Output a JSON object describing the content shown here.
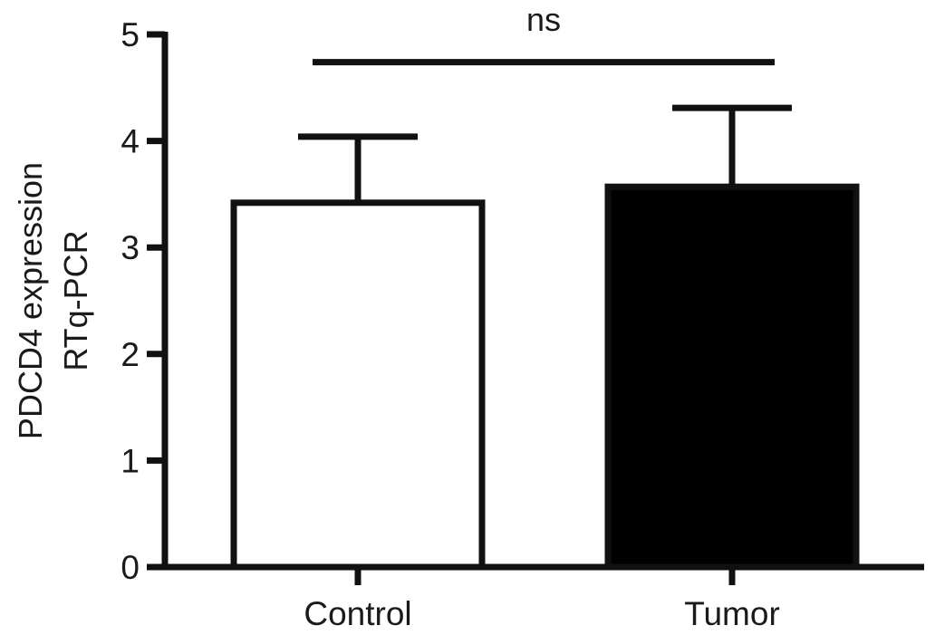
{
  "chart_data": {
    "type": "bar",
    "categories": [
      "Control",
      "Tumor"
    ],
    "values": [
      3.42,
      3.57
    ],
    "errors": [
      0.62,
      0.74
    ],
    "bar_colors": [
      "#ffffff",
      "#000000"
    ],
    "ylabel_lines": [
      "PDCD4 expression",
      "RTq-PCR"
    ],
    "xlabel": "",
    "ylim": [
      0,
      5
    ],
    "yticks": [
      0,
      1,
      2,
      3,
      4,
      5
    ],
    "grid": false,
    "significance": {
      "label": "ns",
      "between": [
        "Control",
        "Tumor"
      ],
      "y": 4.74
    }
  }
}
